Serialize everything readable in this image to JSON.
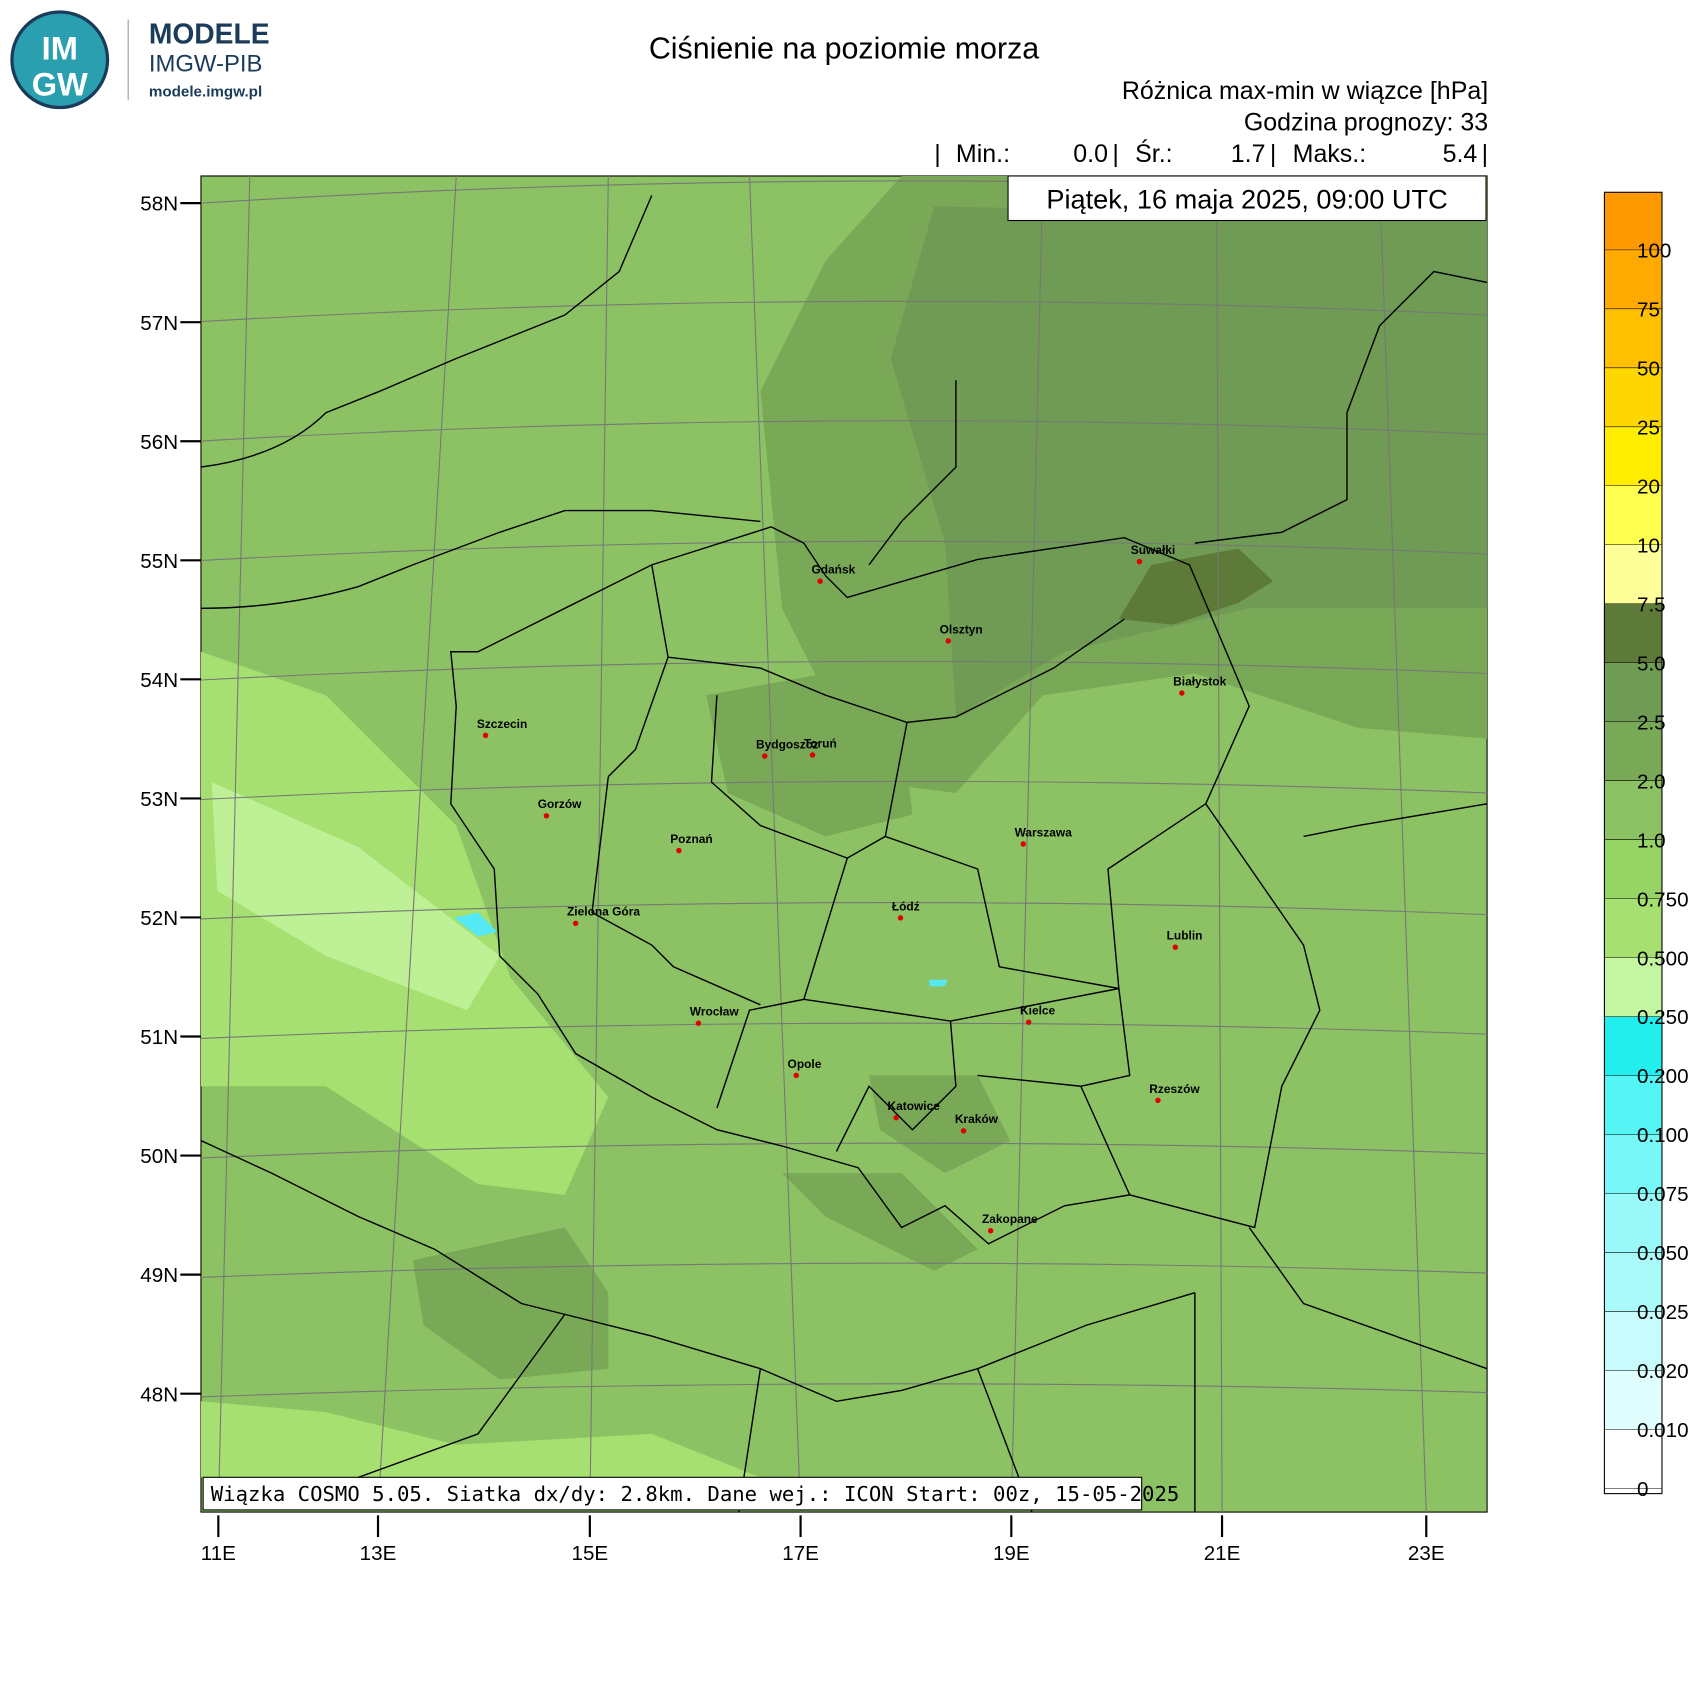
{
  "logo": {
    "badge_top": "IM",
    "badge_bottom": "GW",
    "name": "MODELE",
    "org": "IMGW-PIB",
    "url": "modele.imgw.pl"
  },
  "header": {
    "title": "Ciśnienie na poziomie morza",
    "subtitle": "Różnica max-min w wiązce [hPa]",
    "forecast_hour": "Godzina prognozy: 33",
    "separator": "|",
    "stats": [
      {
        "label": "Min.:",
        "value": "0.0"
      },
      {
        "label": "Śr.:",
        "value": "1.7"
      },
      {
        "label": "Maks.:",
        "value": "5.4"
      }
    ],
    "date": "Piątek, 16 maja 2025, 09:00 UTC"
  },
  "map": {
    "lat_labels": [
      "58N",
      "57N",
      "56N",
      "55N",
      "54N",
      "53N",
      "52N",
      "51N",
      "50N",
      "49N",
      "48N"
    ],
    "lon_labels": [
      "11E",
      "13E",
      "15E",
      "17E",
      "19E",
      "21E",
      "23E"
    ],
    "cities": [
      "Gdańsk",
      "Olsztyn",
      "Suwałki",
      "Białystok",
      "Szczecin",
      "Bydgoszcz",
      "Toruń",
      "Gorzów",
      "Poznań",
      "Warszawa",
      "Zielona Góra",
      "Łódź",
      "Lublin",
      "Wrocław",
      "Kielce",
      "Opole",
      "Rzeszów",
      "Katowice",
      "Kraków",
      "Zakopane"
    ],
    "footer": "Wiązka COSMO 5.05. Siatka dx/dy: 2.8km. Dane wej.: ICON Start: 00z, 15-05-2025"
  },
  "legend": {
    "labels": [
      "100",
      "75",
      "50",
      "25",
      "20",
      "10",
      "7.5",
      "5.0",
      "2.5",
      "2.0",
      "1.0",
      "0.750",
      "0.500",
      "0.250",
      "0.200",
      "0.100",
      "0.075",
      "0.050",
      "0.025",
      "0.020",
      "0.010",
      "0"
    ]
  }
}
